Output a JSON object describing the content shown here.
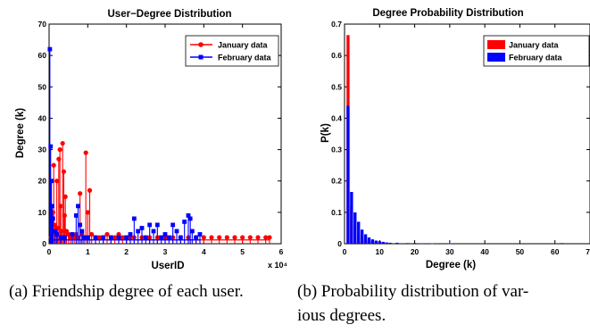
{
  "chart_data": [
    {
      "type": "scatter",
      "title": "User−Degree Distribution",
      "xlabel": "UserID",
      "ylabel": "Degree (k)",
      "x_multiplier_label": "x 10⁴",
      "xlim": [
        0,
        6
      ],
      "ylim": [
        0,
        70
      ],
      "xticks": [
        "0",
        "1",
        "2",
        "3",
        "4",
        "5",
        "6"
      ],
      "yticks": [
        "0",
        "10",
        "20",
        "30",
        "40",
        "50",
        "60",
        "70"
      ],
      "legend": "top-right",
      "series": [
        {
          "name": "January data",
          "color": "#ff0000",
          "marker": "circle",
          "points": [
            [
              0.05,
              2
            ],
            [
              0.1,
              10
            ],
            [
              0.12,
              25
            ],
            [
              0.15,
              6
            ],
            [
              0.18,
              3
            ],
            [
              0.2,
              20
            ],
            [
              0.22,
              5
            ],
            [
              0.25,
              27
            ],
            [
              0.28,
              30
            ],
            [
              0.3,
              12
            ],
            [
              0.32,
              4
            ],
            [
              0.35,
              32
            ],
            [
              0.38,
              23
            ],
            [
              0.4,
              9
            ],
            [
              0.42,
              15
            ],
            [
              0.45,
              4
            ],
            [
              0.5,
              3
            ],
            [
              0.55,
              2
            ],
            [
              0.6,
              3
            ],
            [
              0.65,
              2
            ],
            [
              0.7,
              3
            ],
            [
              0.75,
              2
            ],
            [
              0.8,
              16
            ],
            [
              0.85,
              3
            ],
            [
              0.9,
              2
            ],
            [
              0.95,
              29
            ],
            [
              1.0,
              10
            ],
            [
              1.05,
              17
            ],
            [
              1.1,
              3
            ],
            [
              1.2,
              2
            ],
            [
              1.3,
              2
            ],
            [
              1.4,
              2
            ],
            [
              1.5,
              3
            ],
            [
              1.6,
              2
            ],
            [
              1.7,
              2
            ],
            [
              1.8,
              3
            ],
            [
              1.9,
              2
            ],
            [
              2.0,
              2
            ],
            [
              2.1,
              2
            ],
            [
              2.2,
              2
            ],
            [
              2.4,
              2
            ],
            [
              2.6,
              2
            ],
            [
              2.8,
              2
            ],
            [
              3.0,
              2
            ],
            [
              3.2,
              2
            ],
            [
              3.4,
              2
            ],
            [
              3.6,
              2
            ],
            [
              3.8,
              2
            ],
            [
              4.0,
              2
            ],
            [
              4.2,
              2
            ],
            [
              4.4,
              2
            ],
            [
              4.6,
              2
            ],
            [
              4.8,
              2
            ],
            [
              5.0,
              2
            ],
            [
              5.2,
              2
            ],
            [
              5.4,
              2
            ],
            [
              5.6,
              2
            ],
            [
              5.7,
              2
            ]
          ]
        },
        {
          "name": "February data",
          "color": "#0000ff",
          "marker": "square",
          "points": [
            [
              0.02,
              62
            ],
            [
              0.04,
              31
            ],
            [
              0.06,
              20
            ],
            [
              0.08,
              12
            ],
            [
              0.1,
              8
            ],
            [
              0.15,
              4
            ],
            [
              0.2,
              3
            ],
            [
              0.3,
              2
            ],
            [
              0.4,
              2
            ],
            [
              0.6,
              3
            ],
            [
              0.7,
              9
            ],
            [
              0.75,
              12
            ],
            [
              0.8,
              6
            ],
            [
              0.85,
              4
            ],
            [
              0.9,
              2
            ],
            [
              1.0,
              2
            ],
            [
              1.2,
              2
            ],
            [
              1.4,
              2
            ],
            [
              1.6,
              2
            ],
            [
              1.8,
              2
            ],
            [
              2.0,
              2
            ],
            [
              2.1,
              3
            ],
            [
              2.2,
              8
            ],
            [
              2.3,
              4
            ],
            [
              2.4,
              5
            ],
            [
              2.5,
              2
            ],
            [
              2.6,
              6
            ],
            [
              2.7,
              4
            ],
            [
              2.8,
              6
            ],
            [
              2.9,
              2
            ],
            [
              3.0,
              3
            ],
            [
              3.1,
              2
            ],
            [
              3.2,
              6
            ],
            [
              3.3,
              4
            ],
            [
              3.4,
              2
            ],
            [
              3.5,
              7
            ],
            [
              3.6,
              9
            ],
            [
              3.65,
              8
            ],
            [
              3.7,
              4
            ],
            [
              3.8,
              2
            ],
            [
              3.9,
              3
            ]
          ]
        }
      ]
    },
    {
      "type": "bar",
      "title": "Degree Probability Distribution",
      "xlabel": "Degree (k)",
      "ylabel": "P(k)",
      "xlim": [
        0,
        70
      ],
      "ylim": [
        0,
        0.7
      ],
      "xticks": [
        "0",
        "10",
        "20",
        "30",
        "40",
        "50",
        "60",
        "70"
      ],
      "yticks": [
        "0",
        "0.1",
        "0.2",
        "0.3",
        "0.4",
        "0.5",
        "0.6",
        "0.7"
      ],
      "legend": "top-right",
      "series": [
        {
          "name": "January data",
          "color": "#ff0000",
          "points": [
            [
              1,
              0.665
            ],
            [
              2,
              0.12
            ],
            [
              3,
              0.06
            ],
            [
              4,
              0.03
            ],
            [
              5,
              0.02
            ],
            [
              6,
              0.012
            ],
            [
              7,
              0.008
            ],
            [
              8,
              0.005
            ],
            [
              9,
              0.004
            ],
            [
              10,
              0.003
            ],
            [
              15,
              0.002
            ],
            [
              20,
              0.002
            ],
            [
              25,
              0.001
            ],
            [
              30,
              0.001
            ]
          ]
        },
        {
          "name": "February data",
          "color": "#0000ff",
          "points": [
            [
              1,
              0.44
            ],
            [
              2,
              0.165
            ],
            [
              3,
              0.1
            ],
            [
              4,
              0.07
            ],
            [
              5,
              0.045
            ],
            [
              6,
              0.03
            ],
            [
              7,
              0.02
            ],
            [
              8,
              0.014
            ],
            [
              9,
              0.01
            ],
            [
              10,
              0.008
            ],
            [
              11,
              0.006
            ],
            [
              12,
              0.004
            ],
            [
              13,
              0.003
            ],
            [
              15,
              0.003
            ],
            [
              18,
              0.002
            ],
            [
              20,
              0.002
            ],
            [
              22,
              0.001
            ],
            [
              25,
              0.001
            ],
            [
              30,
              0.001
            ],
            [
              62,
              0.002
            ]
          ]
        }
      ]
    }
  ],
  "captions": {
    "a": "(a) Friendship degree of each user.",
    "b_line1": "(b) Probability distribution of var-",
    "b_line2": "ious degrees."
  }
}
